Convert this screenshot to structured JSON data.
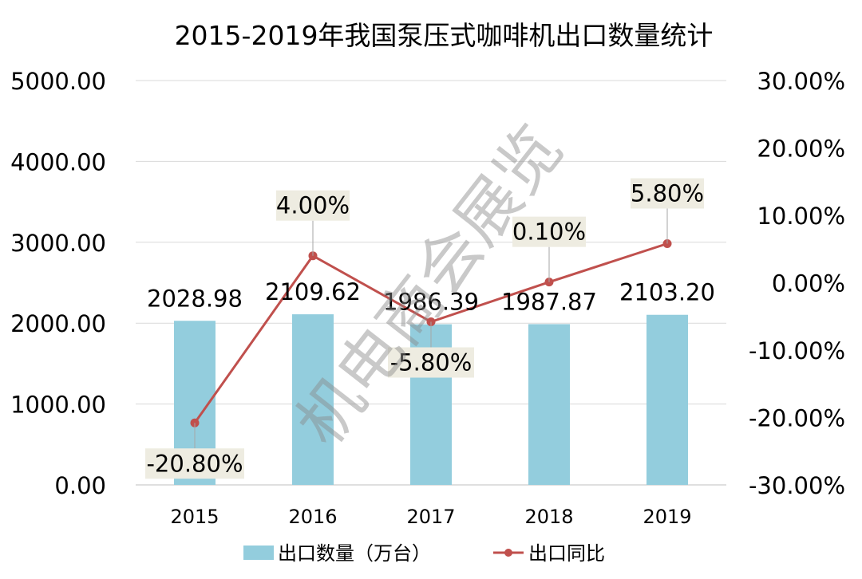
{
  "watermark": "机电商会展览",
  "chart_data": {
    "type": "bar+line",
    "title": "2015-2019年我国泵压式咖啡机出口数量统计",
    "categories": [
      "2015",
      "2016",
      "2017",
      "2018",
      "2019"
    ],
    "series": [
      {
        "name": "出口数量（万台）",
        "type": "bar",
        "axis": "left",
        "color": "#93cddd",
        "values": [
          2028.98,
          2109.62,
          1986.39,
          1987.87,
          2103.2
        ],
        "labels": [
          "2028.98",
          "2109.62",
          "1986.39",
          "1987.87",
          "2103.20"
        ]
      },
      {
        "name": "出口同比",
        "type": "line",
        "axis": "right",
        "color": "#c0504d",
        "values": [
          -20.8,
          4.0,
          -5.8,
          0.1,
          5.8
        ],
        "labels": [
          "-20.80%",
          "4.00%",
          "-5.80%",
          "0.10%",
          "5.80%"
        ]
      }
    ],
    "y_left": {
      "min": 0,
      "max": 5000,
      "ticks": [
        "0.00",
        "1000.00",
        "2000.00",
        "3000.00",
        "4000.00",
        "5000.00"
      ],
      "tick_values": [
        0,
        1000,
        2000,
        3000,
        4000,
        5000
      ]
    },
    "y_right": {
      "min": -30,
      "max": 30,
      "ticks": [
        "-30.00%",
        "-20.00%",
        "-10.00%",
        "0.00%",
        "10.00%",
        "20.00%",
        "30.00%"
      ],
      "tick_values": [
        -30,
        -20,
        -10,
        0,
        10,
        20,
        30
      ]
    },
    "grid": true,
    "legend_position": "bottom"
  }
}
